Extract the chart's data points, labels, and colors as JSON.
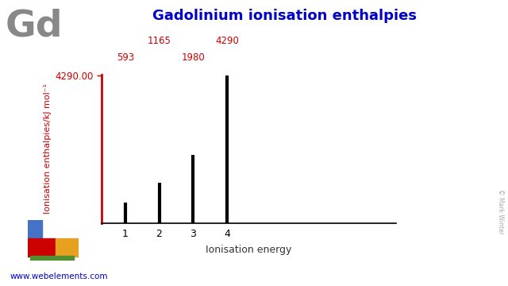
{
  "title": "Gadolinium ionisation enthalpies",
  "element_symbol": "Gd",
  "xlabel": "Ionisation energy",
  "ylabel": "Ionisation enthalpies/kJ mol⁻¹",
  "ionisation_numbers": [
    1,
    2,
    3,
    4
  ],
  "ionisation_values": [
    593,
    1165,
    1980,
    4290
  ],
  "bar_color": "#000000",
  "axis_color": "#cc0000",
  "title_color": "#0000cc",
  "element_color": "#888888",
  "label_color": "#cc0000",
  "ylabel_color": "#cc0000",
  "xlabel_color": "#333333",
  "ymax": 4290,
  "ytick_value": 4290.0,
  "background_color": "#ffffff",
  "website_text": "www.webelements.com",
  "copyright_text": "© Mark Winter",
  "periodic_colors": {
    "blue": "#4472c4",
    "red": "#cc0000",
    "orange": "#e8a020",
    "green": "#509030"
  },
  "label_data": [
    {
      "x_data": 1,
      "text": "593",
      "row": 1
    },
    {
      "x_data": 2,
      "text": "1165",
      "row": 0
    },
    {
      "x_data": 3,
      "text": "1980",
      "row": 1
    },
    {
      "x_data": 4,
      "text": "4290",
      "row": 0
    }
  ]
}
